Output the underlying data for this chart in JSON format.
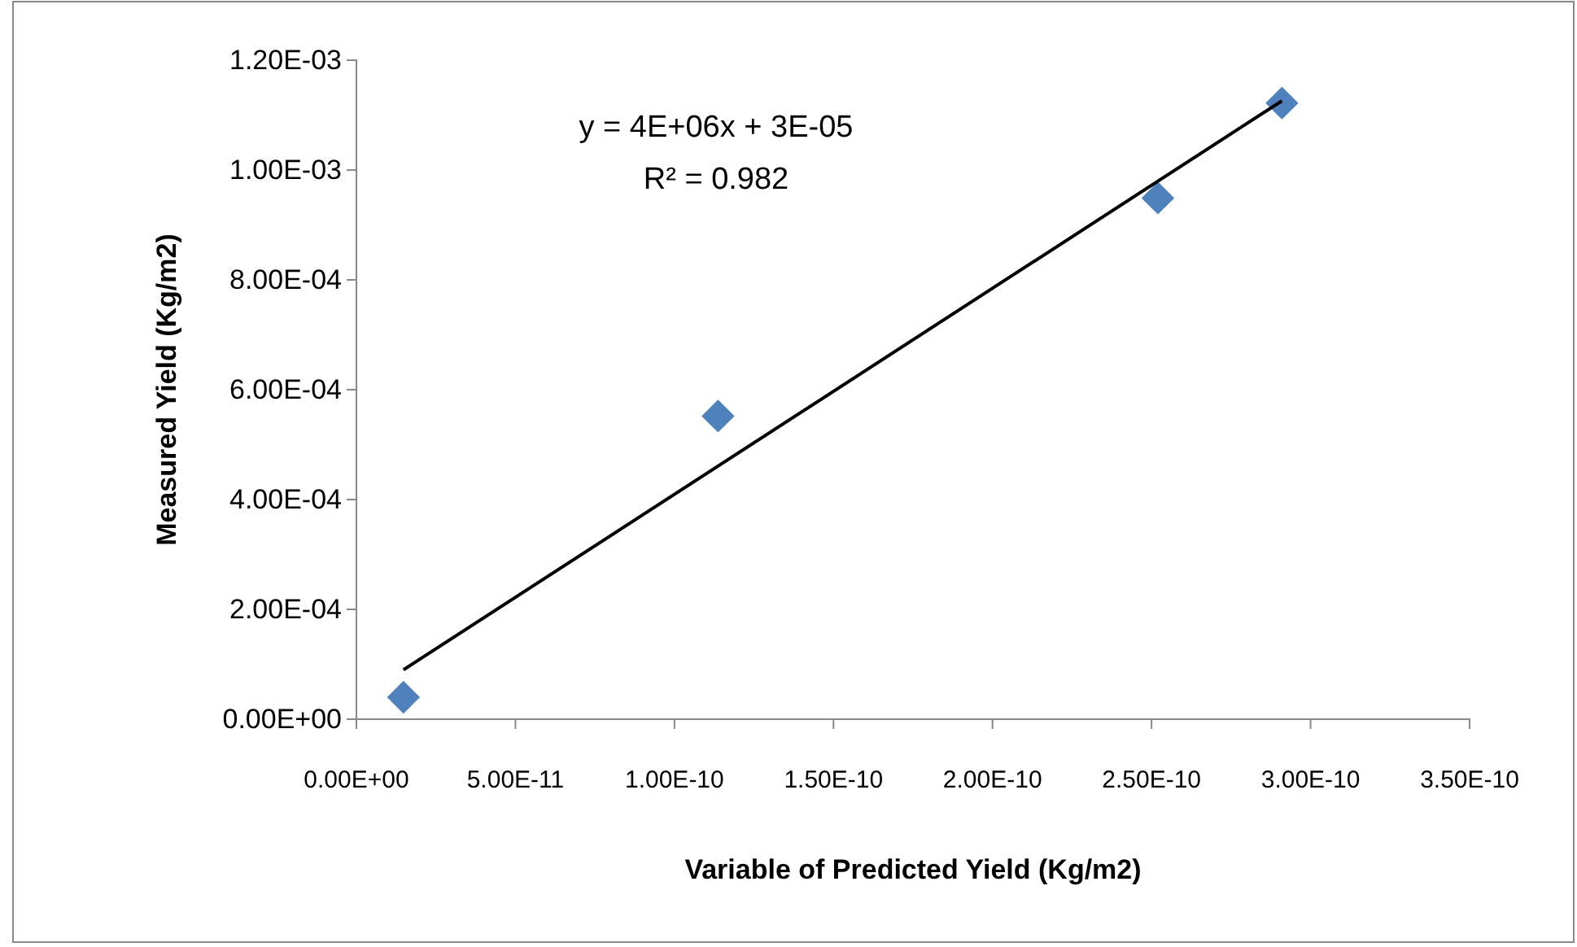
{
  "chart_data": {
    "type": "scatter",
    "xlabel": "Variable of Predicted Yield (Kg/m2)",
    "ylabel": "Measured Yield (Kg/m2)",
    "annotations": [
      "y = 4E+06x + 3E-05",
      "R² = 0.982"
    ],
    "marker": "diamond",
    "grid": false,
    "xlim": [
      0,
      3.5e-10
    ],
    "ylim": [
      0,
      0.0012
    ],
    "xticks": [
      {
        "value": 0,
        "label": "0.00E+00"
      },
      {
        "value": 5e-11,
        "label": "5.00E-11"
      },
      {
        "value": 1e-10,
        "label": "1.00E-10"
      },
      {
        "value": 1.5e-10,
        "label": "1.50E-10"
      },
      {
        "value": 2e-10,
        "label": "2.00E-10"
      },
      {
        "value": 2.5e-10,
        "label": "2.50E-10"
      },
      {
        "value": 3e-10,
        "label": "3.00E-10"
      },
      {
        "value": 3.5e-10,
        "label": "3.50E-10"
      }
    ],
    "yticks": [
      {
        "value": 0,
        "label": "0.00E+00"
      },
      {
        "value": 0.0002,
        "label": "2.00E-04"
      },
      {
        "value": 0.0004,
        "label": "4.00E-04"
      },
      {
        "value": 0.0006,
        "label": "6.00E-04"
      },
      {
        "value": 0.0008,
        "label": "8.00E-04"
      },
      {
        "value": 0.001,
        "label": "1.00E-03"
      },
      {
        "value": 0.0012,
        "label": "1.20E-03"
      }
    ],
    "series": [
      {
        "type": "scatter",
        "color": "#4f81bd",
        "x": [
          1.48e-11,
          1.137e-10,
          2.52e-10,
          2.91e-10
        ],
        "values": [
          4e-05,
          0.000552,
          0.000949,
          0.001122
        ]
      },
      {
        "type": "line",
        "color": "#000000",
        "marker": "none",
        "x": [
          1.48e-11,
          2.91e-10
        ],
        "values": [
          9e-05,
          0.001126
        ]
      }
    ]
  }
}
